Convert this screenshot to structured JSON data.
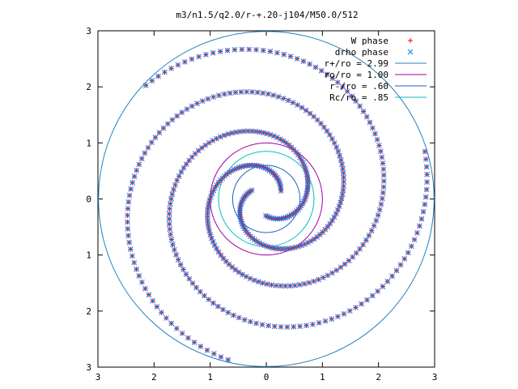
{
  "chart_data": {
    "type": "scatter",
    "title": "m3/n1.5/q2.0/r-+.20-j104/M50.0/512",
    "xlabel": "",
    "ylabel": "",
    "xlim": [
      -3,
      3
    ],
    "ylim": [
      -3,
      3
    ],
    "x_ticks": [
      -3,
      -2,
      -1,
      0,
      1,
      2,
      3
    ],
    "y_ticks": [
      -3,
      -2,
      -1,
      0,
      1,
      2,
      3
    ],
    "x_tick_labels": [
      "3",
      "2",
      "1",
      "0",
      "1",
      "2",
      "3"
    ],
    "y_tick_labels": [
      "3",
      "2",
      "1",
      "0",
      "1",
      "2",
      "3"
    ],
    "grid": false,
    "legend_position": "top-right",
    "series": [
      {
        "name": "W phase",
        "kind": "points",
        "marker": "plus",
        "color": "#ff0000",
        "arms": 3,
        "r_inner": 0.3,
        "r_outer": 2.95
      },
      {
        "name": "drho phase",
        "kind": "points",
        "marker": "cross",
        "color": "#0080ff",
        "arms": 3,
        "r_inner": 0.3,
        "r_outer": 2.95
      },
      {
        "name": "r+/ro = 2.99",
        "kind": "circle",
        "radius": 2.99,
        "color": "#2080c0"
      },
      {
        "name": "ro/ro = 1.00",
        "kind": "circle",
        "radius": 1.0,
        "color": "#a000a0"
      },
      {
        "name": "r-/ro = .60",
        "kind": "circle",
        "radius": 0.6,
        "color": "#2060c0"
      },
      {
        "name": "Rc/ro = .85",
        "kind": "circle",
        "radius": 0.85,
        "color": "#00c0c0"
      }
    ]
  }
}
